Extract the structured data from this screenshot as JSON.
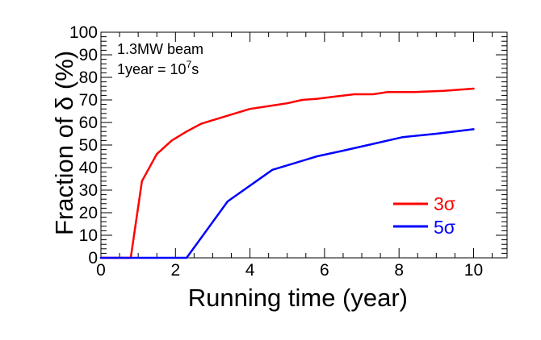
{
  "chart_data": {
    "type": "line",
    "title": "",
    "xlabel": "Running time (year)",
    "ylabel": "Fraction of δ (%)",
    "xlim": [
      0,
      10.9
    ],
    "ylim": [
      0,
      100
    ],
    "x_ticks": [
      0,
      2,
      4,
      6,
      8,
      10
    ],
    "y_ticks": [
      0,
      10,
      20,
      30,
      40,
      50,
      60,
      70,
      80,
      90,
      100
    ],
    "annotations": {
      "line1": "1.3MW beam",
      "line2_prefix": "1year = 10",
      "line2_sup": "7",
      "line2_suffix": "s"
    },
    "legend_position": "right",
    "grid": false,
    "series": [
      {
        "name": "3σ",
        "color": "#ff0000",
        "x": [
          0,
          0.8,
          1.1,
          1.5,
          1.9,
          2.3,
          2.7,
          3.4,
          4.0,
          4.6,
          5.0,
          5.4,
          5.8,
          6.3,
          6.8,
          7.3,
          7.7,
          8.4,
          9.2,
          10.0
        ],
        "y": [
          0,
          0,
          34,
          46,
          52,
          56,
          59.5,
          63,
          66,
          67.5,
          68.5,
          70,
          70.5,
          71.5,
          72.5,
          72.5,
          73.5,
          73.5,
          74,
          75
        ]
      },
      {
        "name": "5σ",
        "color": "#0000ff",
        "x": [
          0,
          2.3,
          3.4,
          4.6,
          5.2,
          5.8,
          6.5,
          7.3,
          8.1,
          9.0,
          10.0
        ],
        "y": [
          0,
          0,
          25,
          39,
          42,
          45,
          47.5,
          50.5,
          53.5,
          55,
          57
        ]
      }
    ]
  }
}
